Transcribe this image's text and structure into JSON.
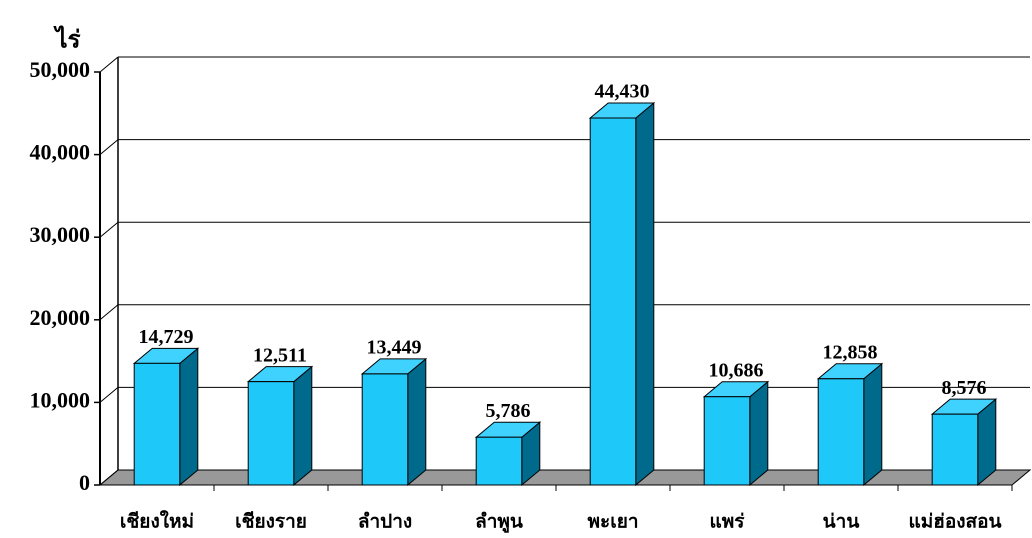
{
  "chart_data": {
    "type": "bar3d",
    "y_label": "ไร่",
    "categories": [
      "เชียงใหม่",
      "เชียงราย",
      "ลำปาง",
      "ลำพูน",
      "พะเยา",
      "แพร่",
      "น่าน",
      "แม่ฮ่องสอน"
    ],
    "values": [
      14729,
      12511,
      13449,
      5786,
      44430,
      10686,
      12858,
      8576
    ],
    "value_labels": [
      "14,729",
      "12,511",
      "13,449",
      "5,786",
      "44,430",
      "10,686",
      "12,858",
      "8,576"
    ],
    "color": "#1ec8f8",
    "ylim": [
      0,
      50000
    ],
    "yticks": [
      0,
      {
        "value": 10000,
        "label": "10,000"
      },
      {
        "value": 20000,
        "label": "20,000"
      },
      {
        "value": 30000,
        "label": "30,000"
      },
      {
        "value": 40000,
        "label": "40,000"
      },
      {
        "value": 50000,
        "label": "50,000"
      }
    ],
    "grid": true
  }
}
